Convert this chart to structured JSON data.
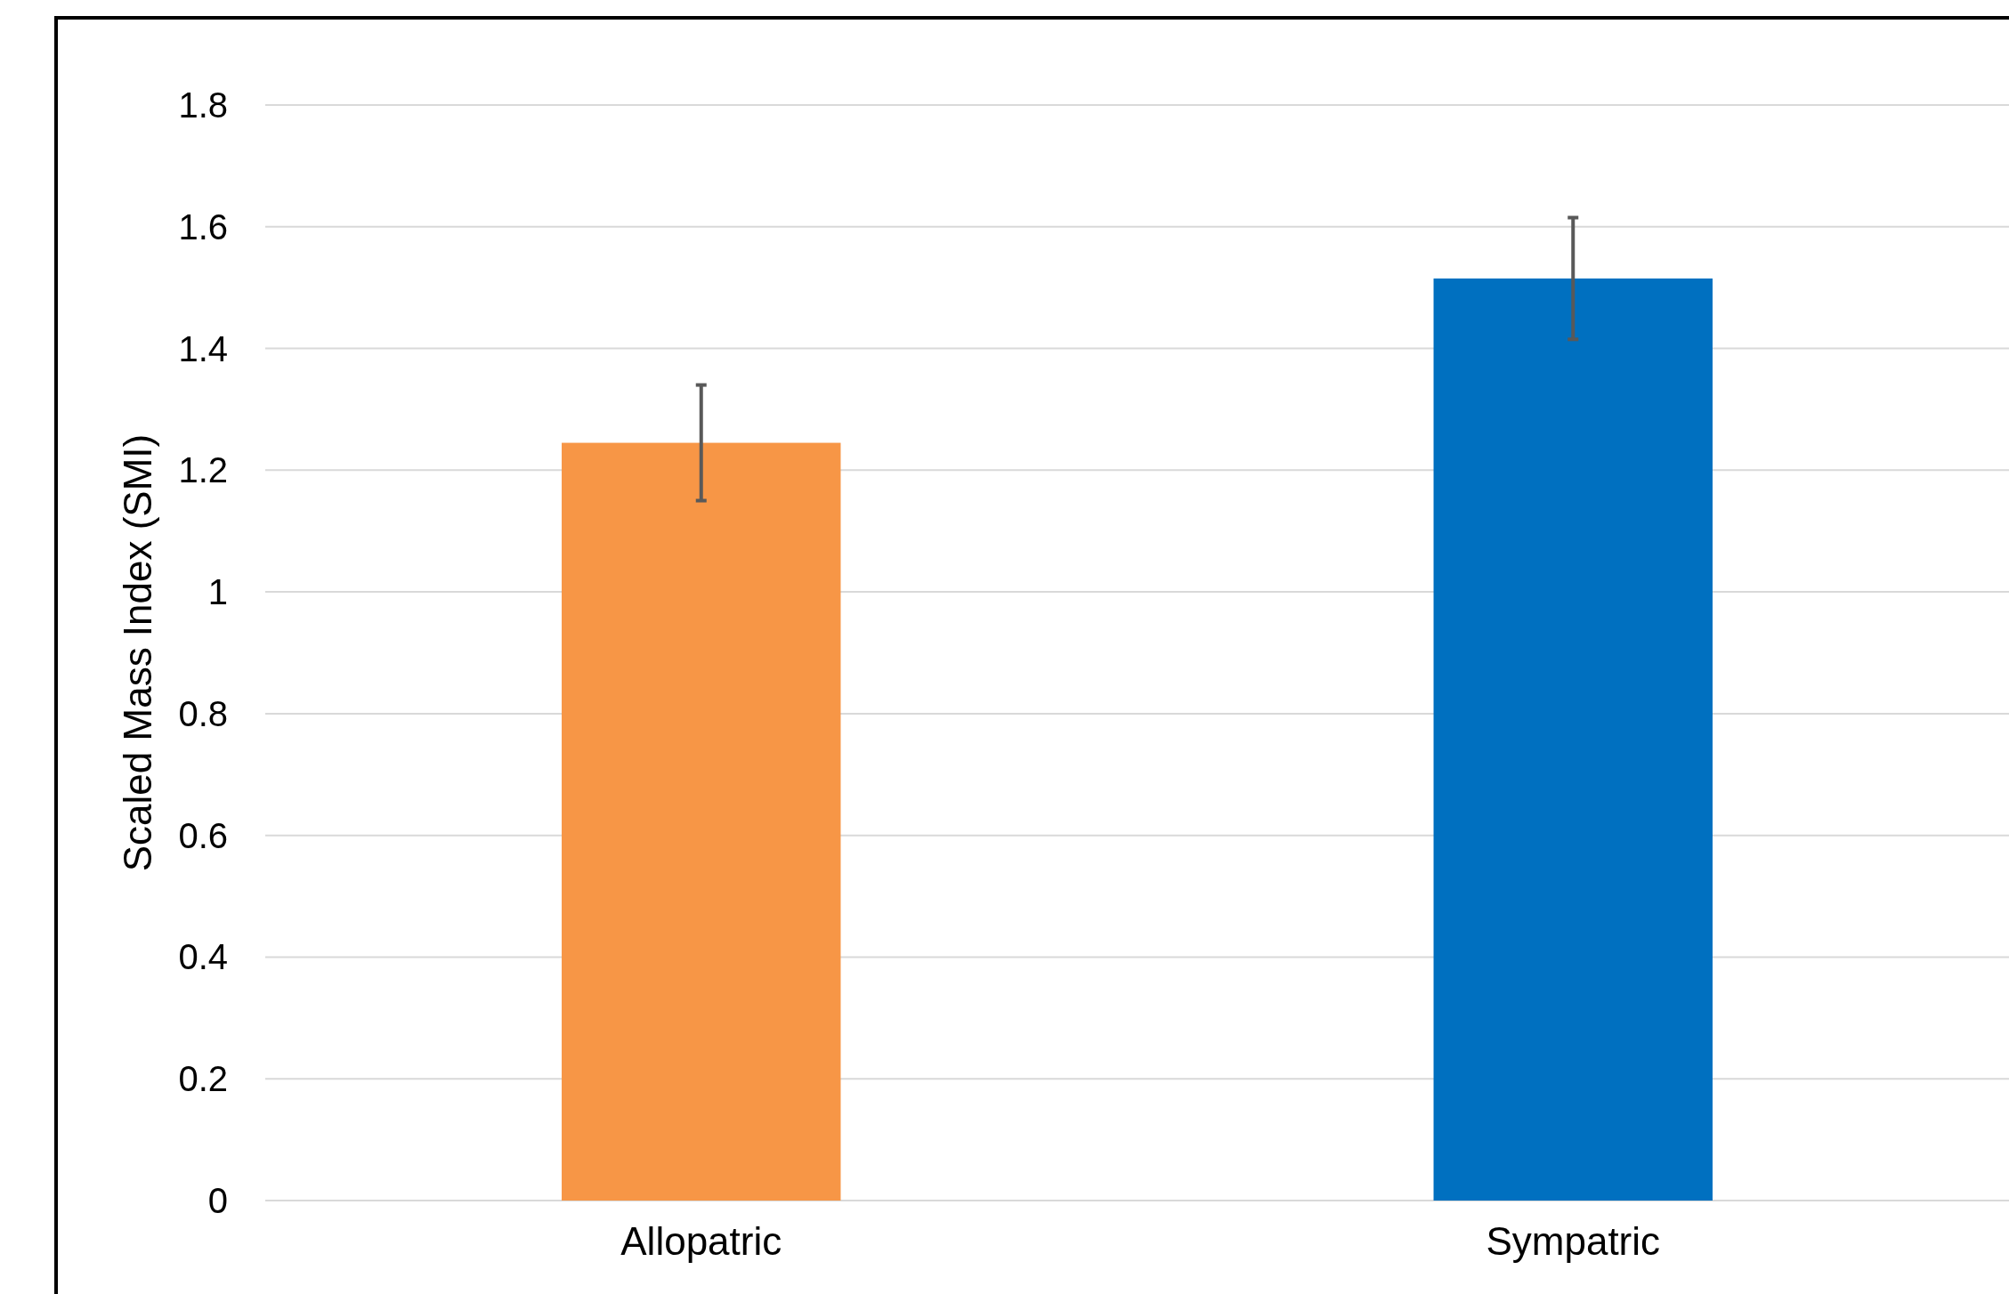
{
  "chart_data": {
    "type": "bar",
    "ylabel": "Scaled Mass Index (SMI)",
    "categories": [
      "Allopatric",
      "Sympatric"
    ],
    "values": [
      1.245,
      1.515
    ],
    "colors": [
      "#f79646",
      "#0070c0"
    ],
    "errors": [
      0.095,
      0.1
    ],
    "ylim": [
      0,
      1.8
    ],
    "yticks": [
      0,
      0.2,
      0.4,
      0.6,
      0.8,
      1,
      1.2,
      1.4,
      1.6,
      1.8
    ],
    "grid": "y"
  }
}
